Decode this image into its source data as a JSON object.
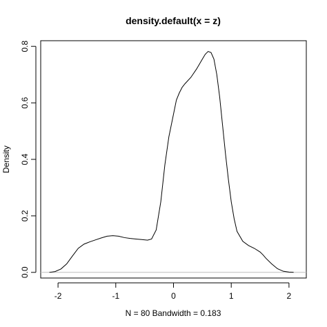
{
  "chart_data": {
    "type": "line",
    "title": "density.default(x = z)",
    "xlabel": "N = 80   Bandwidth = 0.183",
    "ylabel": "Density",
    "xlim": [
      -2.3,
      2.3
    ],
    "ylim": [
      -0.02,
      0.82
    ],
    "x_ticks": [
      -2,
      -1,
      0,
      1,
      2
    ],
    "x_tick_labels": [
      "-2",
      "-1",
      "0",
      "1",
      "2"
    ],
    "y_ticks": [
      0.0,
      0.2,
      0.4,
      0.6,
      0.8
    ],
    "y_tick_labels": [
      "0.0",
      "0.2",
      "0.4",
      "0.6",
      "0.8"
    ],
    "grid": false,
    "baseline": 0,
    "colors": {
      "line": "#000000",
      "baseline": "#bebebe",
      "frame": "#000000"
    },
    "series": [
      {
        "x": [
          -2.15,
          -2.05,
          -1.95,
          -1.85,
          -1.75,
          -1.65,
          -1.55,
          -1.45,
          -1.35,
          -1.25,
          -1.15,
          -1.05,
          -0.95,
          -0.85,
          -0.75,
          -0.65,
          -0.55,
          -0.45,
          -0.38,
          -0.3,
          -0.22,
          -0.15,
          -0.08,
          0.0,
          0.05,
          0.1,
          0.15,
          0.2,
          0.3,
          0.4,
          0.5,
          0.55,
          0.6,
          0.65,
          0.7,
          0.75,
          0.8,
          0.85,
          0.9,
          0.95,
          1.0,
          1.05,
          1.1,
          1.2,
          1.3,
          1.4,
          1.5,
          1.55,
          1.6,
          1.7,
          1.8,
          1.9,
          2.0,
          2.08
        ],
        "y": [
          0.0,
          0.003,
          0.012,
          0.03,
          0.058,
          0.085,
          0.1,
          0.108,
          0.115,
          0.122,
          0.128,
          0.13,
          0.128,
          0.123,
          0.12,
          0.118,
          0.116,
          0.114,
          0.118,
          0.15,
          0.25,
          0.38,
          0.48,
          0.56,
          0.61,
          0.635,
          0.655,
          0.668,
          0.69,
          0.72,
          0.755,
          0.772,
          0.782,
          0.778,
          0.755,
          0.7,
          0.62,
          0.52,
          0.42,
          0.33,
          0.25,
          0.19,
          0.145,
          0.11,
          0.095,
          0.085,
          0.072,
          0.062,
          0.05,
          0.03,
          0.013,
          0.004,
          0.001,
          0.0
        ]
      }
    ]
  }
}
